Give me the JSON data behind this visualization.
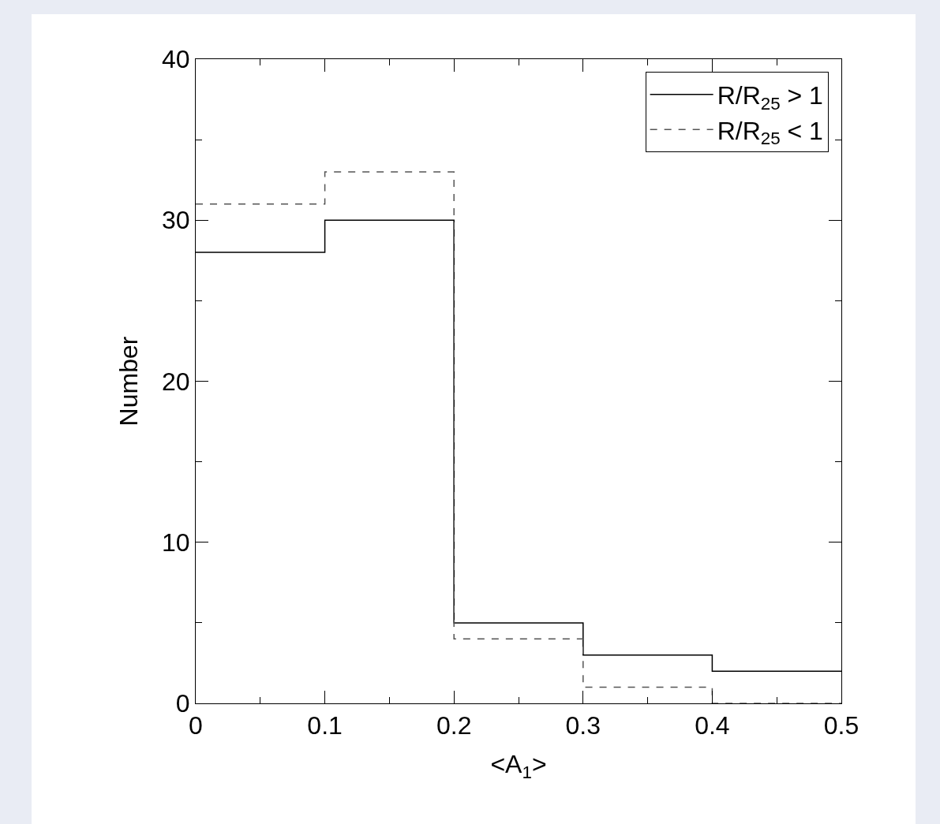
{
  "chart_data": {
    "type": "histogram",
    "xlabel": "<A$_{1}$>",
    "ylabel": "Number",
    "bins": [
      0,
      0.1,
      0.2,
      0.3,
      0.4,
      0.5
    ],
    "series": [
      {
        "name": "R/R$_{25}$ > 1",
        "color": "#000000",
        "line_style": "solid",
        "values": [
          28,
          30,
          5,
          3,
          2
        ]
      },
      {
        "name": "R/R$_{25}$ < 1",
        "color": "#555555",
        "line_style": "dashed",
        "values": [
          31,
          33,
          4,
          1,
          0
        ]
      }
    ],
    "xlim": [
      0,
      0.5
    ],
    "xticks": [
      0,
      0.1,
      0.2,
      0.3,
      0.4,
      0.5
    ],
    "ylim": [
      0,
      40
    ],
    "yticks": [
      0,
      10,
      20,
      30,
      40
    ],
    "grid": false,
    "legend": "top right"
  }
}
